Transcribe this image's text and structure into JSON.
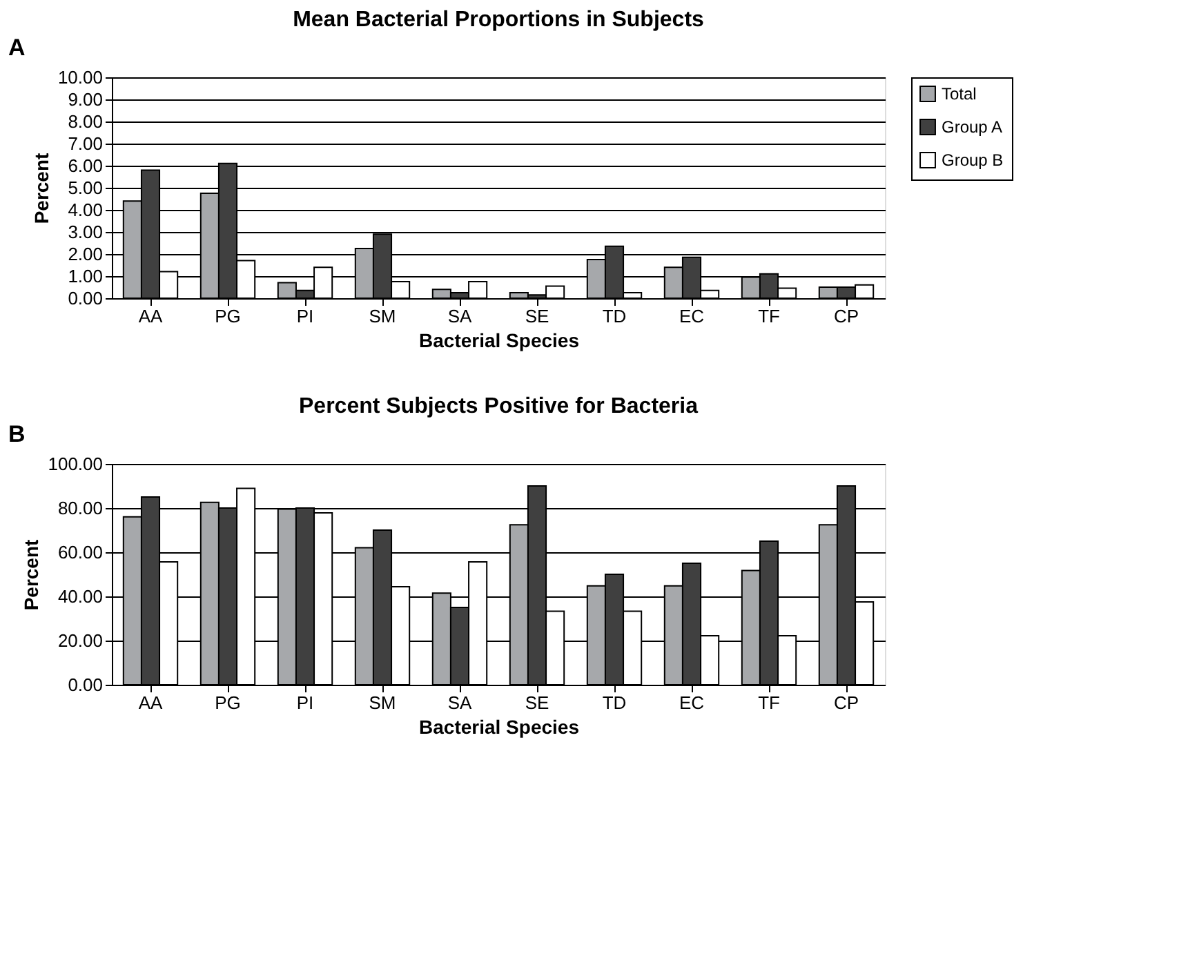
{
  "chart_data": [
    {
      "type": "bar",
      "title": "Mean Bacterial Proportions in Subjects",
      "xlabel": "Bacterial Species",
      "ylabel": "Percent",
      "annotations": [
        "A"
      ],
      "categories": [
        "AA",
        "PG",
        "PI",
        "SM",
        "SA",
        "SE",
        "TD",
        "EC",
        "TF",
        "CP"
      ],
      "series": [
        {
          "name": "Total",
          "color": "#a6a8ab",
          "values": [
            4.4,
            4.75,
            0.7,
            2.25,
            0.4,
            0.25,
            1.75,
            1.4,
            0.95,
            0.5
          ]
        },
        {
          "name": "Group A",
          "color": "#404040",
          "values": [
            5.8,
            6.1,
            0.35,
            2.9,
            0.25,
            0.15,
            2.35,
            1.85,
            1.1,
            0.5
          ]
        },
        {
          "name": "Group B",
          "color": "#ffffff",
          "values": [
            1.2,
            1.7,
            1.4,
            0.75,
            0.75,
            0.55,
            0.25,
            0.35,
            0.45,
            0.6
          ]
        }
      ],
      "ylim": [
        0,
        10
      ],
      "yticks": [
        {
          "value": 0,
          "label": "0.00"
        },
        {
          "value": 1,
          "label": "1.00"
        },
        {
          "value": 2,
          "label": "2.00"
        },
        {
          "value": 3,
          "label": "3.00"
        },
        {
          "value": 4,
          "label": "4.00"
        },
        {
          "value": 5,
          "label": "5.00"
        },
        {
          "value": 6,
          "label": "6.00"
        },
        {
          "value": 7,
          "label": "7.00"
        },
        {
          "value": 8,
          "label": "8.00"
        },
        {
          "value": 9,
          "label": "9.00"
        },
        {
          "value": 10,
          "label": "10.00"
        }
      ],
      "grid": "y",
      "legend": "right"
    },
    {
      "type": "bar",
      "title": "Percent Subjects Positive for Bacteria",
      "xlabel": "Bacterial Species",
      "ylabel": "Percent",
      "annotations": [
        "B"
      ],
      "categories": [
        "AA",
        "PG",
        "PI",
        "SM",
        "SA",
        "SE",
        "TD",
        "EC",
        "TF",
        "CP"
      ],
      "series": [
        {
          "name": "Total",
          "color": "#a6a8ab",
          "values": [
            76,
            82.6,
            79.5,
            62,
            41.5,
            72.4,
            44.8,
            44.8,
            51.7,
            72.4
          ]
        },
        {
          "name": "Group A",
          "color": "#404040",
          "values": [
            85,
            80,
            80,
            70,
            35,
            90,
            50,
            55,
            65,
            90
          ]
        },
        {
          "name": "Group B",
          "color": "#ffffff",
          "values": [
            55.6,
            88.9,
            77.8,
            44.4,
            55.6,
            33.3,
            33.3,
            22.2,
            22.2,
            37.5
          ]
        }
      ],
      "ylim": [
        0,
        100
      ],
      "yticks": [
        {
          "value": 0,
          "label": "0.00"
        },
        {
          "value": 20,
          "label": "20.00"
        },
        {
          "value": 40,
          "label": "40.00"
        },
        {
          "value": 60,
          "label": "60.00"
        },
        {
          "value": 80,
          "label": "80.00"
        },
        {
          "value": 100,
          "label": "100.00"
        }
      ],
      "grid": "y",
      "legend": "right"
    }
  ]
}
